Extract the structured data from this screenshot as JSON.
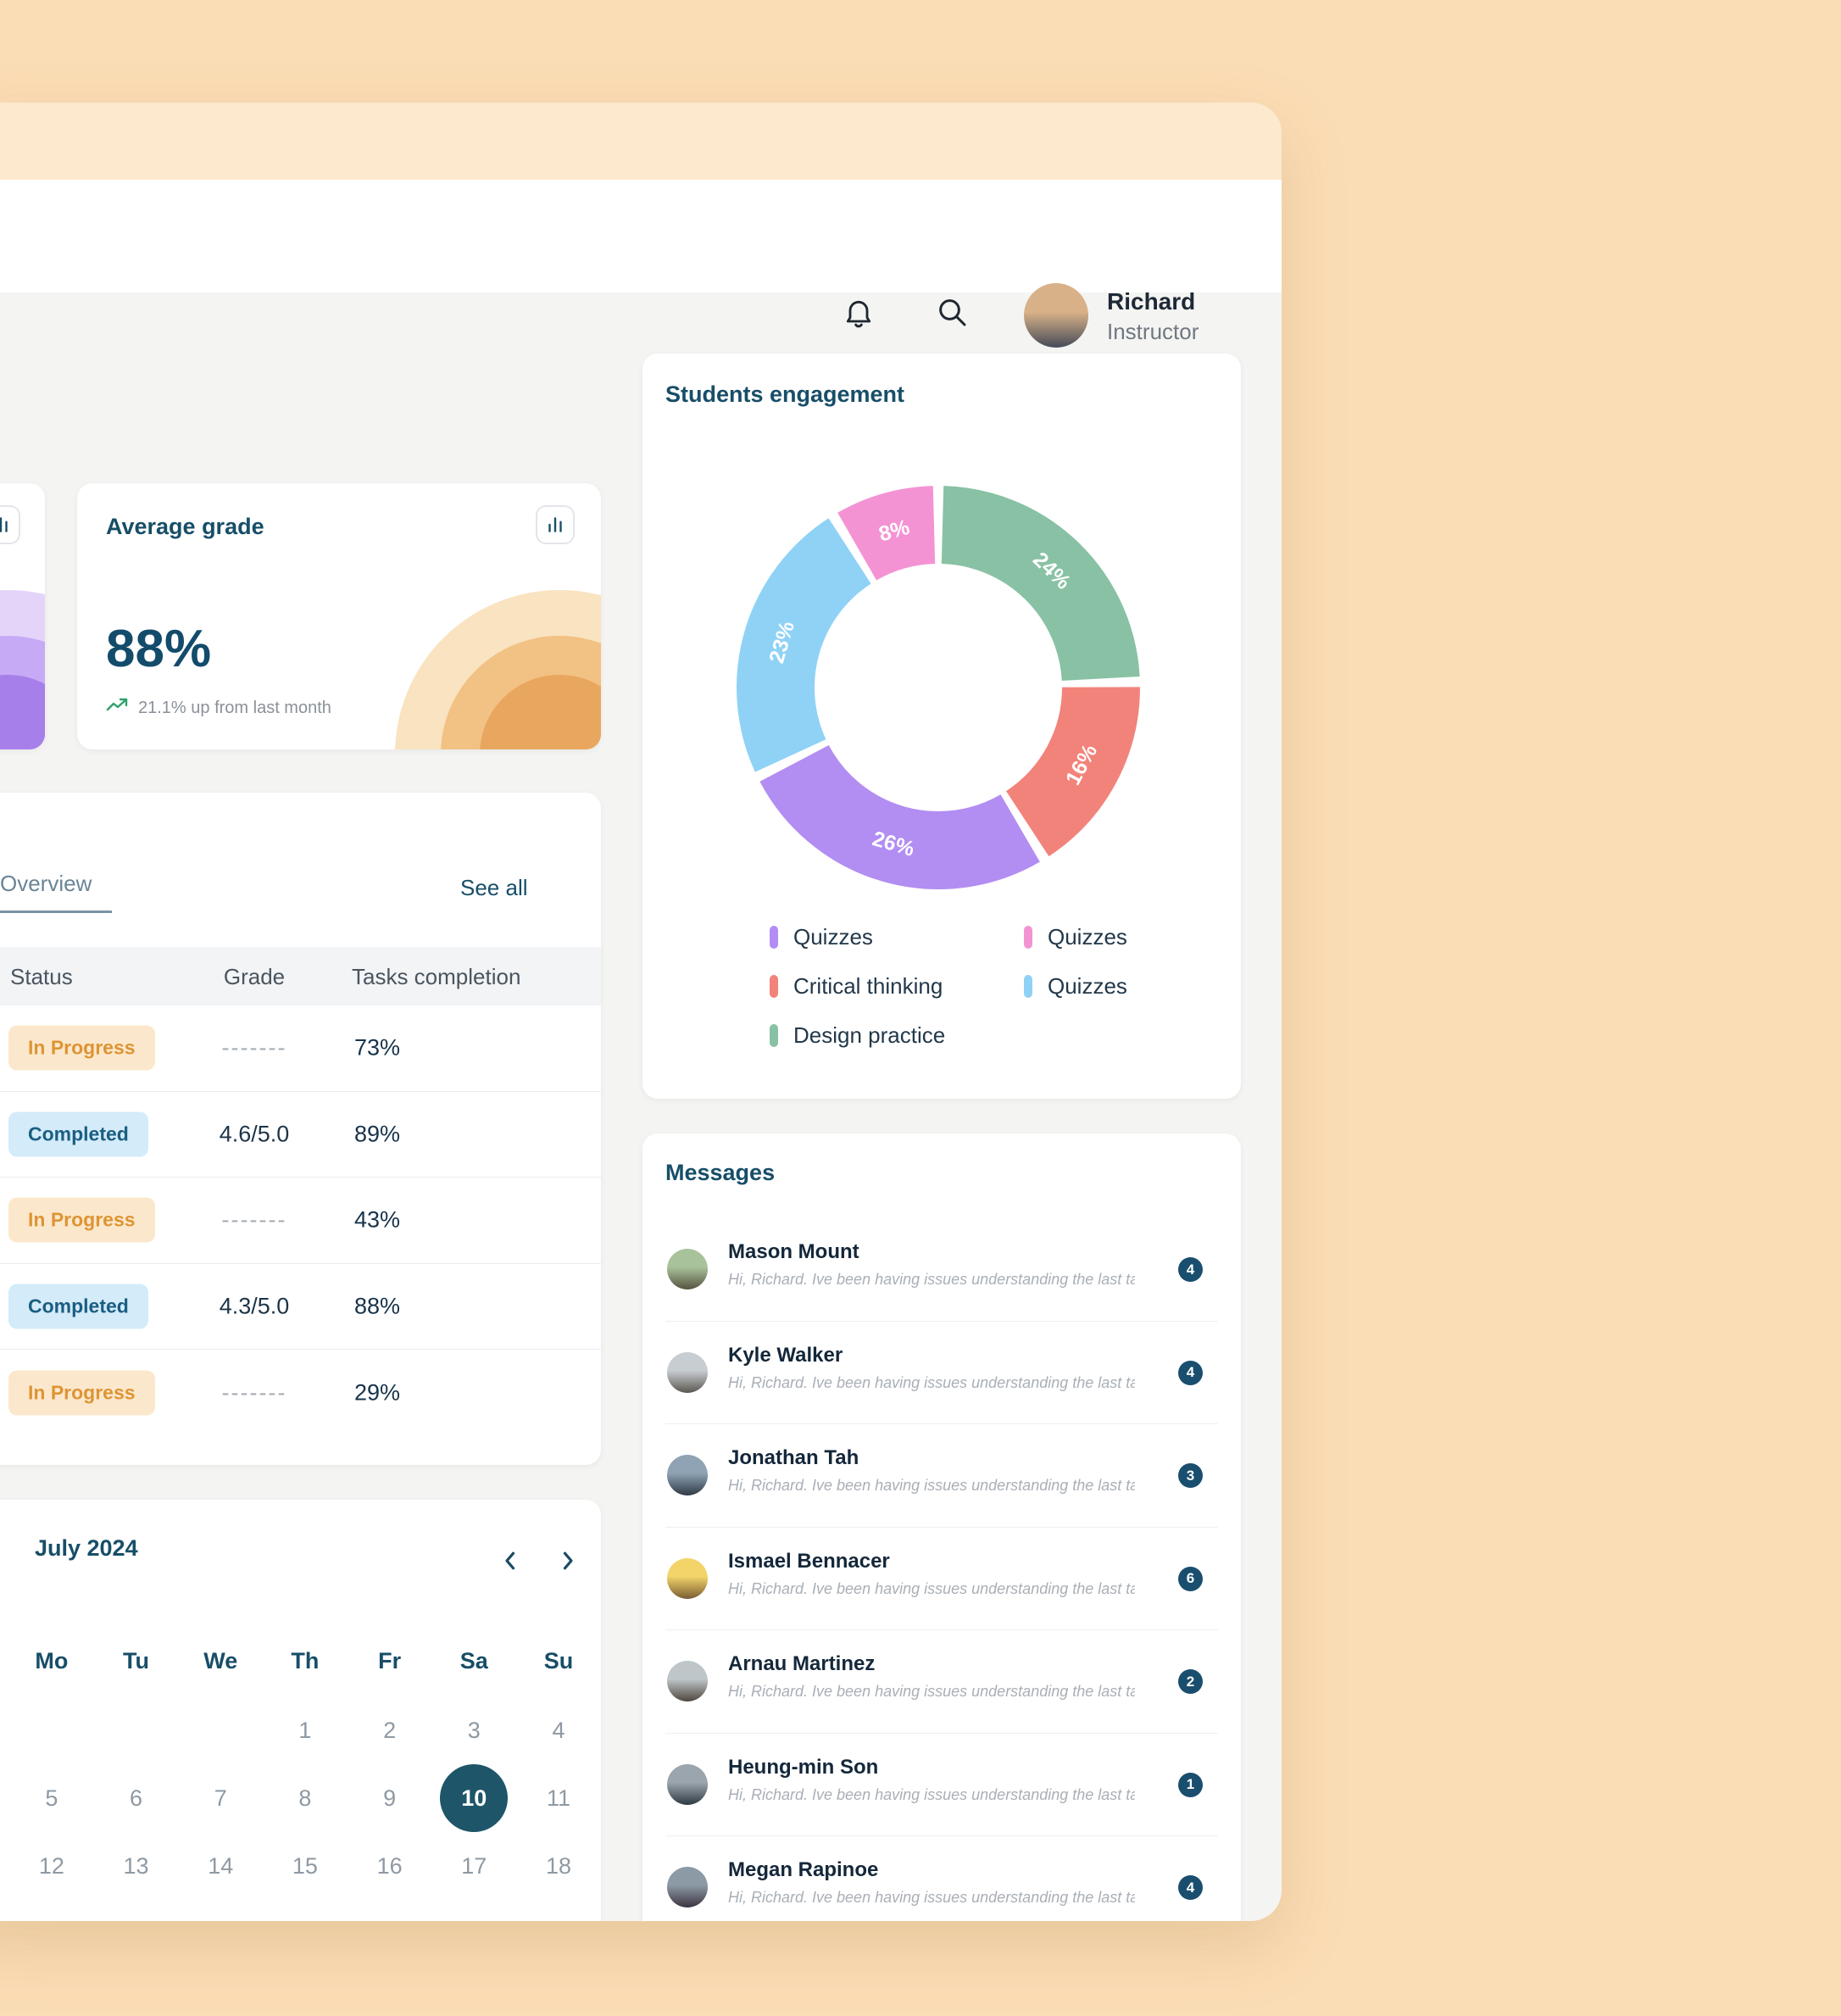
{
  "colors": {
    "page_bg": "#FBDDB5",
    "window_band": "#FCE9CE",
    "content_bg": "#F4F4F2",
    "heading": "#174E68",
    "selected_date": "#1E5569",
    "message_badge": "#1A4E6E",
    "trend_green": "#2EA26B"
  },
  "header": {
    "user_name": "Richard",
    "user_role": "Instructor",
    "avatar_gradient": [
      "#D8B188",
      "#454B57"
    ]
  },
  "average_grade_card": {
    "title": "Average grade",
    "value": "88%",
    "trend_text": "21.1% up from last month"
  },
  "overview_panel": {
    "active_tab": "Overview",
    "see_all_label": "See all",
    "columns": [
      "Status",
      "Grade",
      "Tasks completion"
    ],
    "rows": [
      {
        "status": "In Progress",
        "status_type": "in-progress",
        "grade": "-------",
        "completion": "73%"
      },
      {
        "status": "Completed",
        "status_type": "completed",
        "grade": "4.6/5.0",
        "completion": "89%"
      },
      {
        "status": "In Progress",
        "status_type": "in-progress",
        "grade": "-------",
        "completion": "43%"
      },
      {
        "status": "Completed",
        "status_type": "completed",
        "grade": "4.3/5.0",
        "completion": "88%"
      },
      {
        "status": "In Progress",
        "status_type": "in-progress",
        "grade": "-------",
        "completion": "29%"
      }
    ],
    "status_colors": {
      "in-progress": {
        "bg": "#FBE8CC",
        "text": "#DE9434"
      },
      "completed": {
        "bg": "#D4EBFA",
        "text": "#1A5E81"
      }
    }
  },
  "calendar": {
    "title": "July 2024",
    "weekdays": [
      "Mo",
      "Tu",
      "We",
      "Th",
      "Fr",
      "Sa",
      "Su"
    ],
    "weeks": [
      [
        "",
        "",
        "",
        "1",
        "2",
        "3",
        "4"
      ],
      [
        "5",
        "6",
        "7",
        "8",
        "9",
        "10",
        "11"
      ],
      [
        "12",
        "13",
        "14",
        "15",
        "16",
        "17",
        "18"
      ]
    ],
    "selected_date": "10"
  },
  "chart_data": {
    "type": "pie",
    "title": "Students engagement",
    "donut": true,
    "segments": [
      {
        "label": "Design practice",
        "value": 24,
        "color": "#89C1A4"
      },
      {
        "label": "Critical thinking",
        "value": 16,
        "color": "#F2837B"
      },
      {
        "label": "Quizzes",
        "value": 26,
        "color": "#B28DF2"
      },
      {
        "label": "Quizzes",
        "value": 23,
        "color": "#8FD2F6"
      },
      {
        "label": "Quizzes",
        "value": 8,
        "color": "#F493D3"
      }
    ],
    "legend_left": [
      {
        "label": "Quizzes",
        "color": "#B28DF2"
      },
      {
        "label": "Critical thinking",
        "color": "#F2837B"
      },
      {
        "label": "Design practice",
        "color": "#89C1A4"
      }
    ],
    "legend_right": [
      {
        "label": "Quizzes",
        "color": "#F493D3"
      },
      {
        "label": "Quizzes",
        "color": "#8FD2F6"
      }
    ]
  },
  "messages": {
    "title": "Messages",
    "items": [
      {
        "name": "Mason Mount",
        "preview": "Hi, Richard. Ive been having issues understanding the last ta...",
        "count": "4",
        "avatar_gradient": [
          "#A8C29B",
          "#57523F"
        ]
      },
      {
        "name": "Kyle Walker",
        "preview": "Hi, Richard. Ive been having issues understanding the last ta...",
        "count": "4",
        "avatar_gradient": [
          "#C8CDD2",
          "#5B5650"
        ]
      },
      {
        "name": "Jonathan Tah",
        "preview": "Hi, Richard. Ive been having issues understanding the last ta...",
        "count": "3",
        "avatar_gradient": [
          "#8FA3B5",
          "#2F3A45"
        ]
      },
      {
        "name": "Ismael Bennacer",
        "preview": "Hi, Richard. Ive been having issues understanding the last ta...",
        "count": "6",
        "avatar_gradient": [
          "#F2D469",
          "#7A5B33"
        ]
      },
      {
        "name": "Arnau Martinez",
        "preview": "Hi, Richard. Ive been having issues understanding the last ta...",
        "count": "2",
        "avatar_gradient": [
          "#BFC6C9",
          "#4F463E"
        ]
      },
      {
        "name": "Heung-min Son",
        "preview": "Hi, Richard. Ive been having issues understanding the last ta...",
        "count": "1",
        "avatar_gradient": [
          "#9AA5AD",
          "#303A41"
        ]
      },
      {
        "name": "Megan Rapinoe",
        "preview": "Hi, Richard. Ive been having issues understanding the last ta...",
        "count": "4",
        "avatar_gradient": [
          "#8B9AA5",
          "#3C3440"
        ]
      }
    ]
  }
}
